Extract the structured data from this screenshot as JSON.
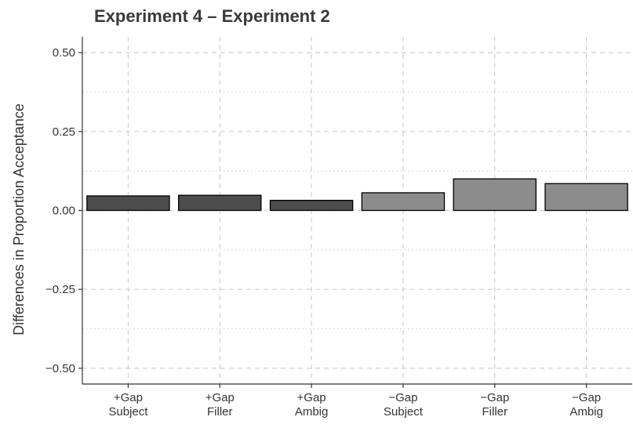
{
  "chart_data": {
    "type": "bar",
    "title": "Experiment 4 – Experiment 2",
    "xlabel": "",
    "ylabel": "Differences in Proportion Acceptance",
    "ylim": [
      -0.55,
      0.55
    ],
    "yticks": [
      0.5,
      0.25,
      0.0,
      -0.25,
      -0.5
    ],
    "ytick_labels": [
      "0.50",
      "0.25",
      "0.00",
      "−0.25",
      "−0.50"
    ],
    "y_minor_ticks": [
      0.375,
      0.125,
      -0.125,
      -0.375
    ],
    "grid": true,
    "categories": [
      {
        "line1": "+Gap",
        "line2": "Subject"
      },
      {
        "line1": "+Gap",
        "line2": "Filler"
      },
      {
        "line1": "+Gap",
        "line2": "Ambig"
      },
      {
        "line1": "−Gap",
        "line2": "Subject"
      },
      {
        "line1": "−Gap",
        "line2": "Filler"
      },
      {
        "line1": "−Gap",
        "line2": "Ambig"
      }
    ],
    "values": [
      0.046,
      0.048,
      0.032,
      0.056,
      0.1,
      0.085
    ],
    "bar_colors": [
      "#4d4d4d",
      "#4d4d4d",
      "#4d4d4d",
      "#8c8c8c",
      "#8c8c8c",
      "#8c8c8c"
    ]
  }
}
